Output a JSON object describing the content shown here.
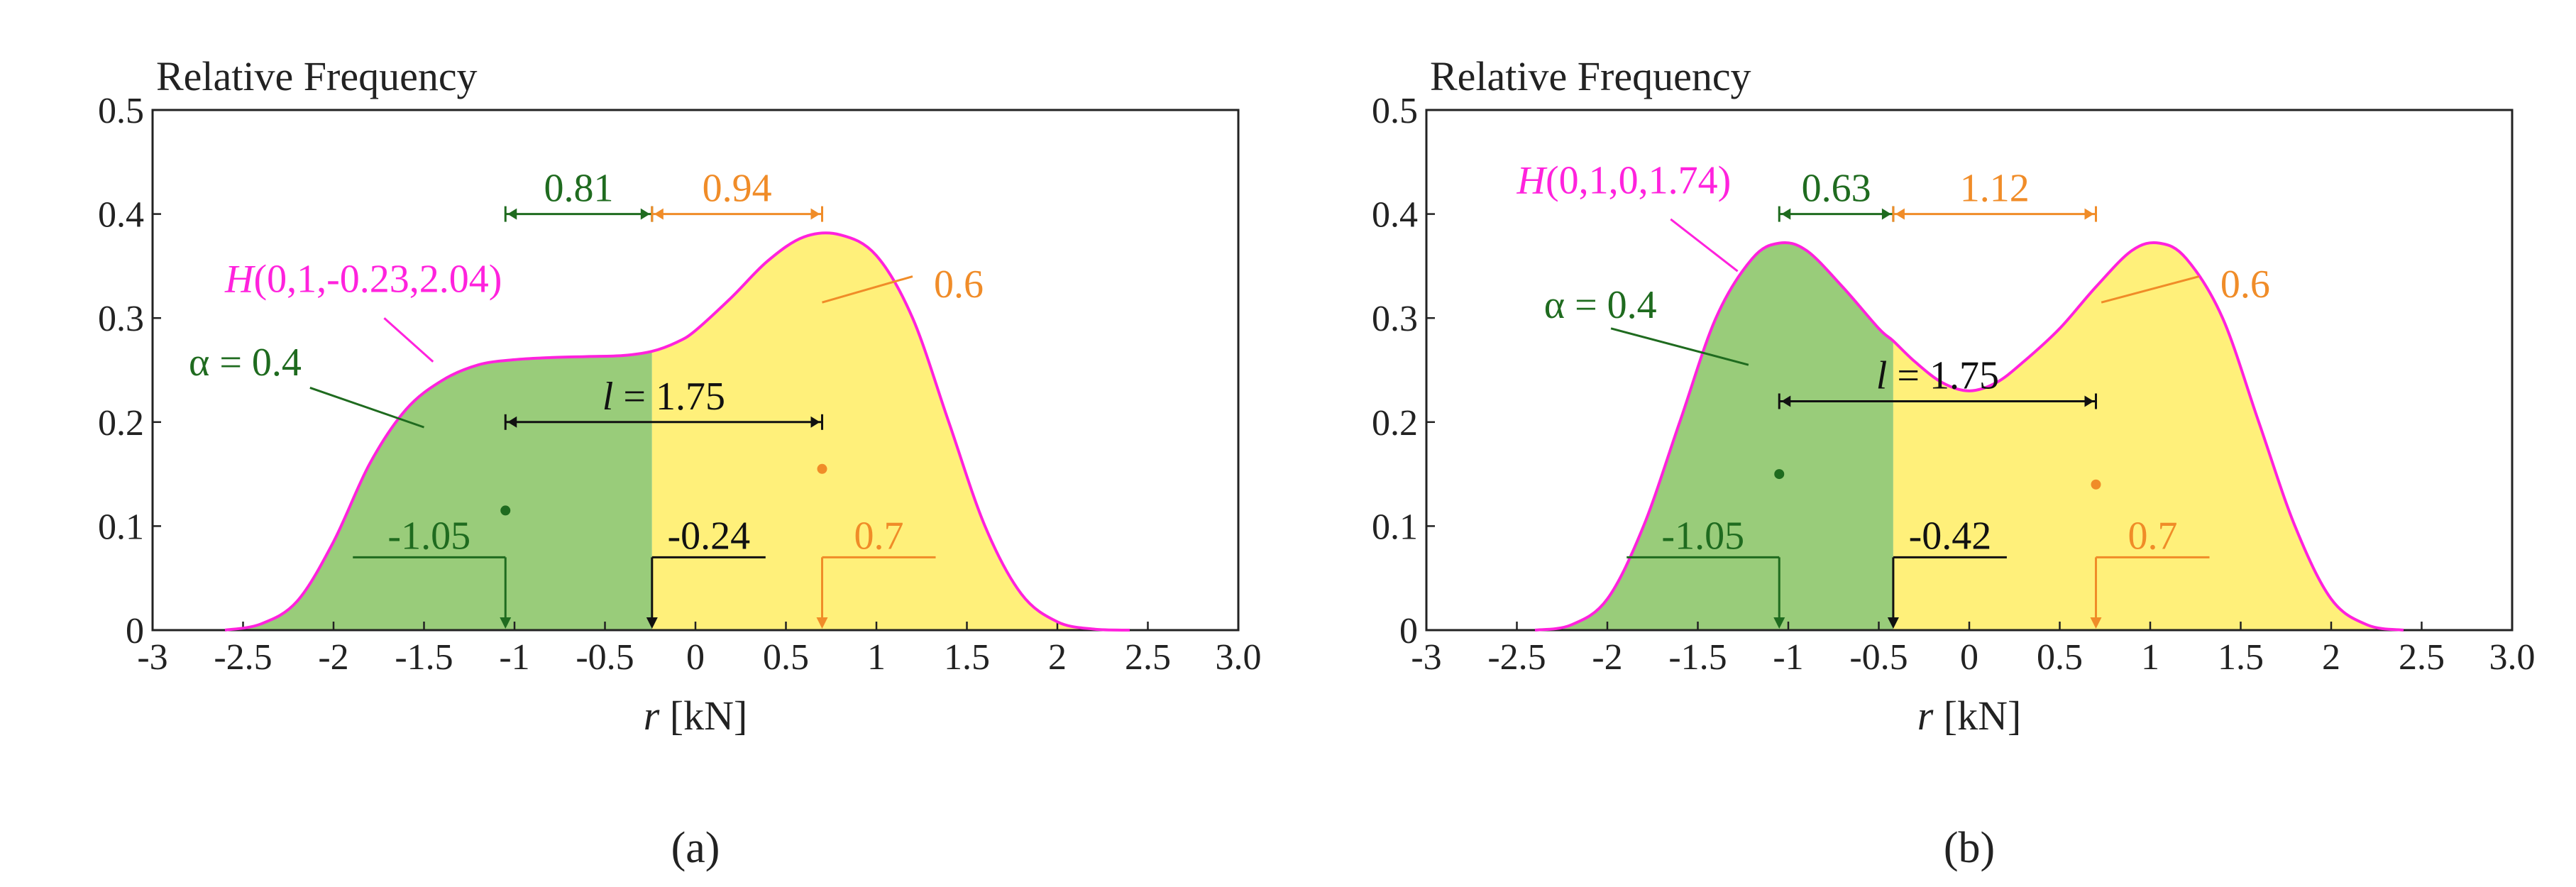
{
  "colors": {
    "green_fill": "#99cc7a",
    "yellow_fill": "#fff07a",
    "curve": "#ff22dd",
    "dark_green": "#1f6b1f",
    "orange": "#f08c28",
    "black": "#111111"
  },
  "chart_data": [
    {
      "type": "area",
      "panel_label": "(a)",
      "title": "Relative Frequency",
      "xlabel_var": "r",
      "xlabel_unit": " [kN]",
      "xlim": [
        -3,
        3
      ],
      "ylim": [
        0,
        0.5
      ],
      "x_ticks": [
        -3,
        -2.5,
        -2,
        -1.5,
        -1,
        -0.5,
        0,
        0.5,
        1,
        1.5,
        2,
        2.5,
        3
      ],
      "x_tick_labels": [
        "-3",
        "-2.5",
        "-2",
        "-1.5",
        "-1",
        "-0.5",
        "0",
        "0.5",
        "1",
        "1.5",
        "2",
        "2.5",
        "3.0"
      ],
      "y_ticks": [
        0,
        0.1,
        0.2,
        0.3,
        0.4,
        0.5
      ],
      "y_tick_labels": [
        "0",
        "0.1",
        "0.2",
        "0.3",
        "0.4",
        "0.5"
      ],
      "curve_label": "H(0,1,-0.23,2.04)",
      "curve_label_parts": [
        "H",
        "(0,1,-0.23,2.04)"
      ],
      "curve": {
        "x": [
          -2.6,
          -2.4,
          -2.2,
          -2.0,
          -1.8,
          -1.6,
          -1.4,
          -1.2,
          -1.0,
          -0.8,
          -0.6,
          -0.4,
          -0.24,
          -0.1,
          0.0,
          0.2,
          0.4,
          0.6,
          0.8,
          1.0,
          1.2,
          1.4,
          1.6,
          1.8,
          2.0,
          2.2,
          2.4
        ],
        "y": [
          0.0,
          0.006,
          0.028,
          0.085,
          0.16,
          0.212,
          0.24,
          0.255,
          0.26,
          0.262,
          0.263,
          0.264,
          0.268,
          0.277,
          0.288,
          0.32,
          0.355,
          0.378,
          0.38,
          0.36,
          0.3,
          0.2,
          0.1,
          0.035,
          0.008,
          0.001,
          0.0
        ]
      },
      "split_x": -0.24,
      "alpha_label": "α = 0.4",
      "alpha_leader": {
        "from": [
          -1.5,
          0.195
        ],
        "to": [
          -2.13,
          0.233
        ]
      },
      "right_mass_label": "0.6",
      "right_leader": {
        "from": [
          0.7,
          0.315
        ],
        "to": [
          1.2,
          0.34
        ]
      },
      "green_point": {
        "x": -1.05,
        "y": 0.115
      },
      "orange_point": {
        "x": 0.7,
        "y": 0.155
      },
      "green_interval_label": "0.81",
      "green_interval": [
        -1.05,
        -0.24
      ],
      "orange_interval_label": "0.94",
      "orange_interval": [
        -0.24,
        0.7
      ],
      "interval_y": 0.4,
      "l_label_var": "l",
      "l_label_rest": " = 1.75",
      "l_interval": [
        -1.05,
        0.7
      ],
      "l_y": 0.2,
      "markers": [
        {
          "value_label": "-1.05",
          "x": -1.05,
          "color": "dark_green",
          "side": "left",
          "shelf_y": 0.07
        },
        {
          "value_label": "-0.24",
          "x": -0.24,
          "color": "black",
          "side": "right",
          "shelf_y": 0.07
        },
        {
          "value_label": "0.7",
          "x": 0.7,
          "color": "orange",
          "side": "right",
          "shelf_y": 0.07
        }
      ]
    },
    {
      "type": "area",
      "panel_label": "(b)",
      "title": "Relative Frequency",
      "xlabel_var": "r",
      "xlabel_unit": " [kN]",
      "xlim": [
        -3,
        3
      ],
      "ylim": [
        0,
        0.5
      ],
      "x_ticks": [
        -3,
        -2.5,
        -2,
        -1.5,
        -1,
        -0.5,
        0,
        0.5,
        1,
        1.5,
        2,
        2.5,
        3
      ],
      "x_tick_labels": [
        "-3",
        "-2.5",
        "-2",
        "-1.5",
        "-1",
        "-0.5",
        "0",
        "0.5",
        "1",
        "1.5",
        "2",
        "2.5",
        "3.0"
      ],
      "y_ticks": [
        0,
        0.1,
        0.2,
        0.3,
        0.4,
        0.5
      ],
      "y_tick_labels": [
        "0",
        "0.1",
        "0.2",
        "0.3",
        "0.4",
        "0.5"
      ],
      "curve_label": "H(0,1,0,1.74)",
      "curve_label_parts": [
        "H",
        "(0,1,0,1.74)"
      ],
      "curve": {
        "x": [
          -2.4,
          -2.2,
          -2.0,
          -1.8,
          -1.6,
          -1.4,
          -1.2,
          -1.05,
          -0.9,
          -0.7,
          -0.5,
          -0.42,
          -0.3,
          -0.15,
          0.0,
          0.15,
          0.3,
          0.5,
          0.7,
          0.9,
          1.05,
          1.2,
          1.4,
          1.6,
          1.8,
          2.0,
          2.2,
          2.4
        ],
        "y": [
          0.0,
          0.005,
          0.03,
          0.1,
          0.2,
          0.3,
          0.357,
          0.372,
          0.365,
          0.33,
          0.29,
          0.278,
          0.258,
          0.238,
          0.23,
          0.238,
          0.258,
          0.29,
          0.33,
          0.365,
          0.372,
          0.357,
          0.3,
          0.2,
          0.1,
          0.03,
          0.005,
          0.0
        ]
      },
      "split_x": -0.42,
      "alpha_label": "α = 0.4",
      "alpha_leader": {
        "from": [
          -1.22,
          0.255
        ],
        "to": [
          -1.98,
          0.29
        ]
      },
      "right_mass_label": "0.6",
      "right_leader": {
        "from": [
          0.73,
          0.315
        ],
        "to": [
          1.27,
          0.34
        ]
      },
      "green_point": {
        "x": -1.05,
        "y": 0.15
      },
      "orange_point": {
        "x": 0.7,
        "y": 0.14
      },
      "green_interval_label": "0.63",
      "green_interval": [
        -1.05,
        -0.42
      ],
      "orange_interval_label": "1.12",
      "orange_interval": [
        -0.42,
        0.7
      ],
      "interval_y": 0.4,
      "l_label_var": "l",
      "l_label_rest": " = 1.75",
      "l_interval": [
        -1.05,
        0.7
      ],
      "l_y": 0.22,
      "markers": [
        {
          "value_label": "-1.05",
          "x": -1.05,
          "color": "dark_green",
          "side": "left",
          "shelf_y": 0.07
        },
        {
          "value_label": "-0.42",
          "x": -0.42,
          "color": "black",
          "side": "right",
          "shelf_y": 0.07
        },
        {
          "value_label": "0.7",
          "x": 0.7,
          "color": "orange",
          "side": "right",
          "shelf_y": 0.07
        }
      ]
    }
  ]
}
